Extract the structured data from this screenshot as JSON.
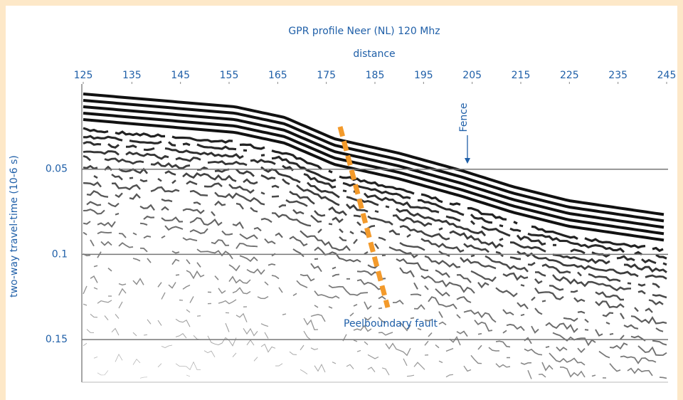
{
  "chart_data": {
    "type": "radargram",
    "title": "GPR profile Neer (NL) 120 Mhz",
    "x_label": "distance",
    "y_label": "two-way travel-time (10-6 s)",
    "xlim": [
      125,
      245
    ],
    "xticks": [
      125,
      135,
      145,
      155,
      165,
      175,
      185,
      195,
      205,
      215,
      225,
      235,
      245
    ],
    "ylim": [
      0,
      0.175
    ],
    "yticks": [
      0.05,
      0.1,
      0.15
    ],
    "grid": true,
    "x_axis_position": "top",
    "annotations": [
      "Fence",
      "Peelboundary fault"
    ]
  }
}
